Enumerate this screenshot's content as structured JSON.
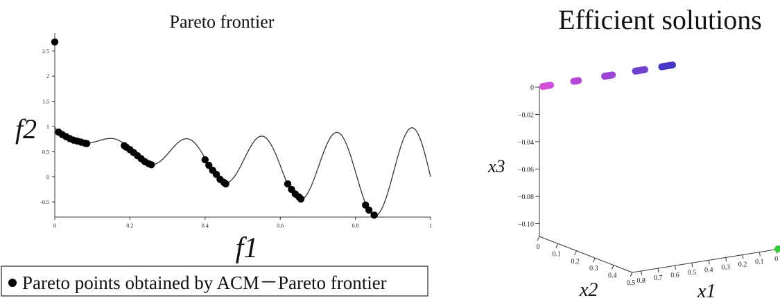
{
  "left_chart": {
    "title": "Pareto frontier",
    "xlabel": "f1",
    "ylabel": "f2",
    "legend_text": "Pareto points obtained by ACM－Pareto frontier",
    "x_ticks": [
      "0",
      "0.2",
      "0.4",
      "0.6",
      "0.8",
      "1"
    ],
    "y_ticks": [
      "-0.5",
      "0",
      "0.5",
      "1",
      "1.5",
      "2",
      "2.5"
    ]
  },
  "right_chart": {
    "title": "Efficient solutions",
    "x1_label": "x1",
    "x2_label": "x2",
    "x3_label": "x3",
    "x3_ticks": [
      "0",
      "−0.02",
      "−0.04",
      "−0.06",
      "−0.08",
      "−0.10"
    ],
    "x2_ticks": [
      "0",
      "0.1",
      "0.2",
      "0.3",
      "0.4",
      "0.5"
    ],
    "x1_ticks": [
      "0.8",
      "0.7",
      "0.6",
      "0.5",
      "0.4",
      "0.3",
      "0.2",
      "0.1",
      "0"
    ]
  },
  "chart_data": [
    {
      "type": "scatter",
      "title": "Pareto frontier",
      "xlabel": "f1",
      "ylabel": "f2",
      "xlim": [
        0,
        1
      ],
      "ylim": [
        -0.8,
        2.8
      ],
      "grid": false,
      "legend": "bottom",
      "curve": {
        "function": "1 - sqrt(f1) - f1*sin(10*pi*f1)",
        "color": "#333333"
      },
      "series": [
        {
          "name": "Pareto points obtained by ACM－Pareto frontier",
          "color": "#000000",
          "points": [
            [
              0.0,
              2.68
            ],
            [
              0.01,
              0.89
            ],
            [
              0.02,
              0.84
            ],
            [
              0.03,
              0.8
            ],
            [
              0.04,
              0.76
            ],
            [
              0.05,
              0.73
            ],
            [
              0.06,
              0.71
            ],
            [
              0.07,
              0.69
            ],
            [
              0.08,
              0.67
            ],
            [
              0.085,
              0.66
            ],
            [
              0.185,
              0.62
            ],
            [
              0.19,
              0.59
            ],
            [
              0.2,
              0.54
            ],
            [
              0.21,
              0.48
            ],
            [
              0.22,
              0.42
            ],
            [
              0.23,
              0.36
            ],
            [
              0.24,
              0.3
            ],
            [
              0.25,
              0.26
            ],
            [
              0.257,
              0.24
            ],
            [
              0.4,
              0.34
            ],
            [
              0.41,
              0.23
            ],
            [
              0.42,
              0.13
            ],
            [
              0.43,
              0.05
            ],
            [
              0.44,
              -0.05
            ],
            [
              0.45,
              -0.11
            ],
            [
              0.455,
              -0.14
            ],
            [
              0.62,
              -0.14
            ],
            [
              0.63,
              -0.25
            ],
            [
              0.64,
              -0.34
            ],
            [
              0.65,
              -0.4
            ],
            [
              0.655,
              -0.44
            ],
            [
              0.827,
              -0.56
            ],
            [
              0.836,
              -0.66
            ],
            [
              0.85,
              -0.76
            ]
          ]
        }
      ]
    },
    {
      "type": "scatter",
      "title": "Efficient solutions",
      "xlabel": "x1",
      "ylabel": "x2",
      "zlabel": "x3",
      "grid": false,
      "series": [
        {
          "name": "",
          "points": [
            {
              "x1": 0.85,
              "x2": 0.0,
              "x3": 0.0,
              "color": "#d050d8"
            },
            {
              "x1": 0.8,
              "x2": 0.0,
              "x3": 0.0,
              "color": "#d050d8"
            },
            {
              "x1": 0.65,
              "x2": 0.0,
              "x3": 0.0,
              "color": "#b448d8"
            },
            {
              "x1": 0.62,
              "x2": 0.0,
              "x3": 0.0,
              "color": "#b448d8"
            },
            {
              "x1": 0.45,
              "x2": 0.0,
              "x3": 0.0,
              "color": "#9c44d4"
            },
            {
              "x1": 0.4,
              "x2": 0.0,
              "x3": 0.0,
              "color": "#9c44d4"
            },
            {
              "x1": 0.25,
              "x2": 0.0,
              "x3": 0.0,
              "color": "#7040d0"
            },
            {
              "x1": 0.19,
              "x2": 0.0,
              "x3": 0.0,
              "color": "#7040d0"
            },
            {
              "x1": 0.08,
              "x2": 0.0,
              "x3": 0.0,
              "color": "#4838c8"
            },
            {
              "x1": 0.01,
              "x2": 0.0,
              "x3": 0.0,
              "color": "#4838c8"
            }
          ]
        }
      ]
    }
  ]
}
